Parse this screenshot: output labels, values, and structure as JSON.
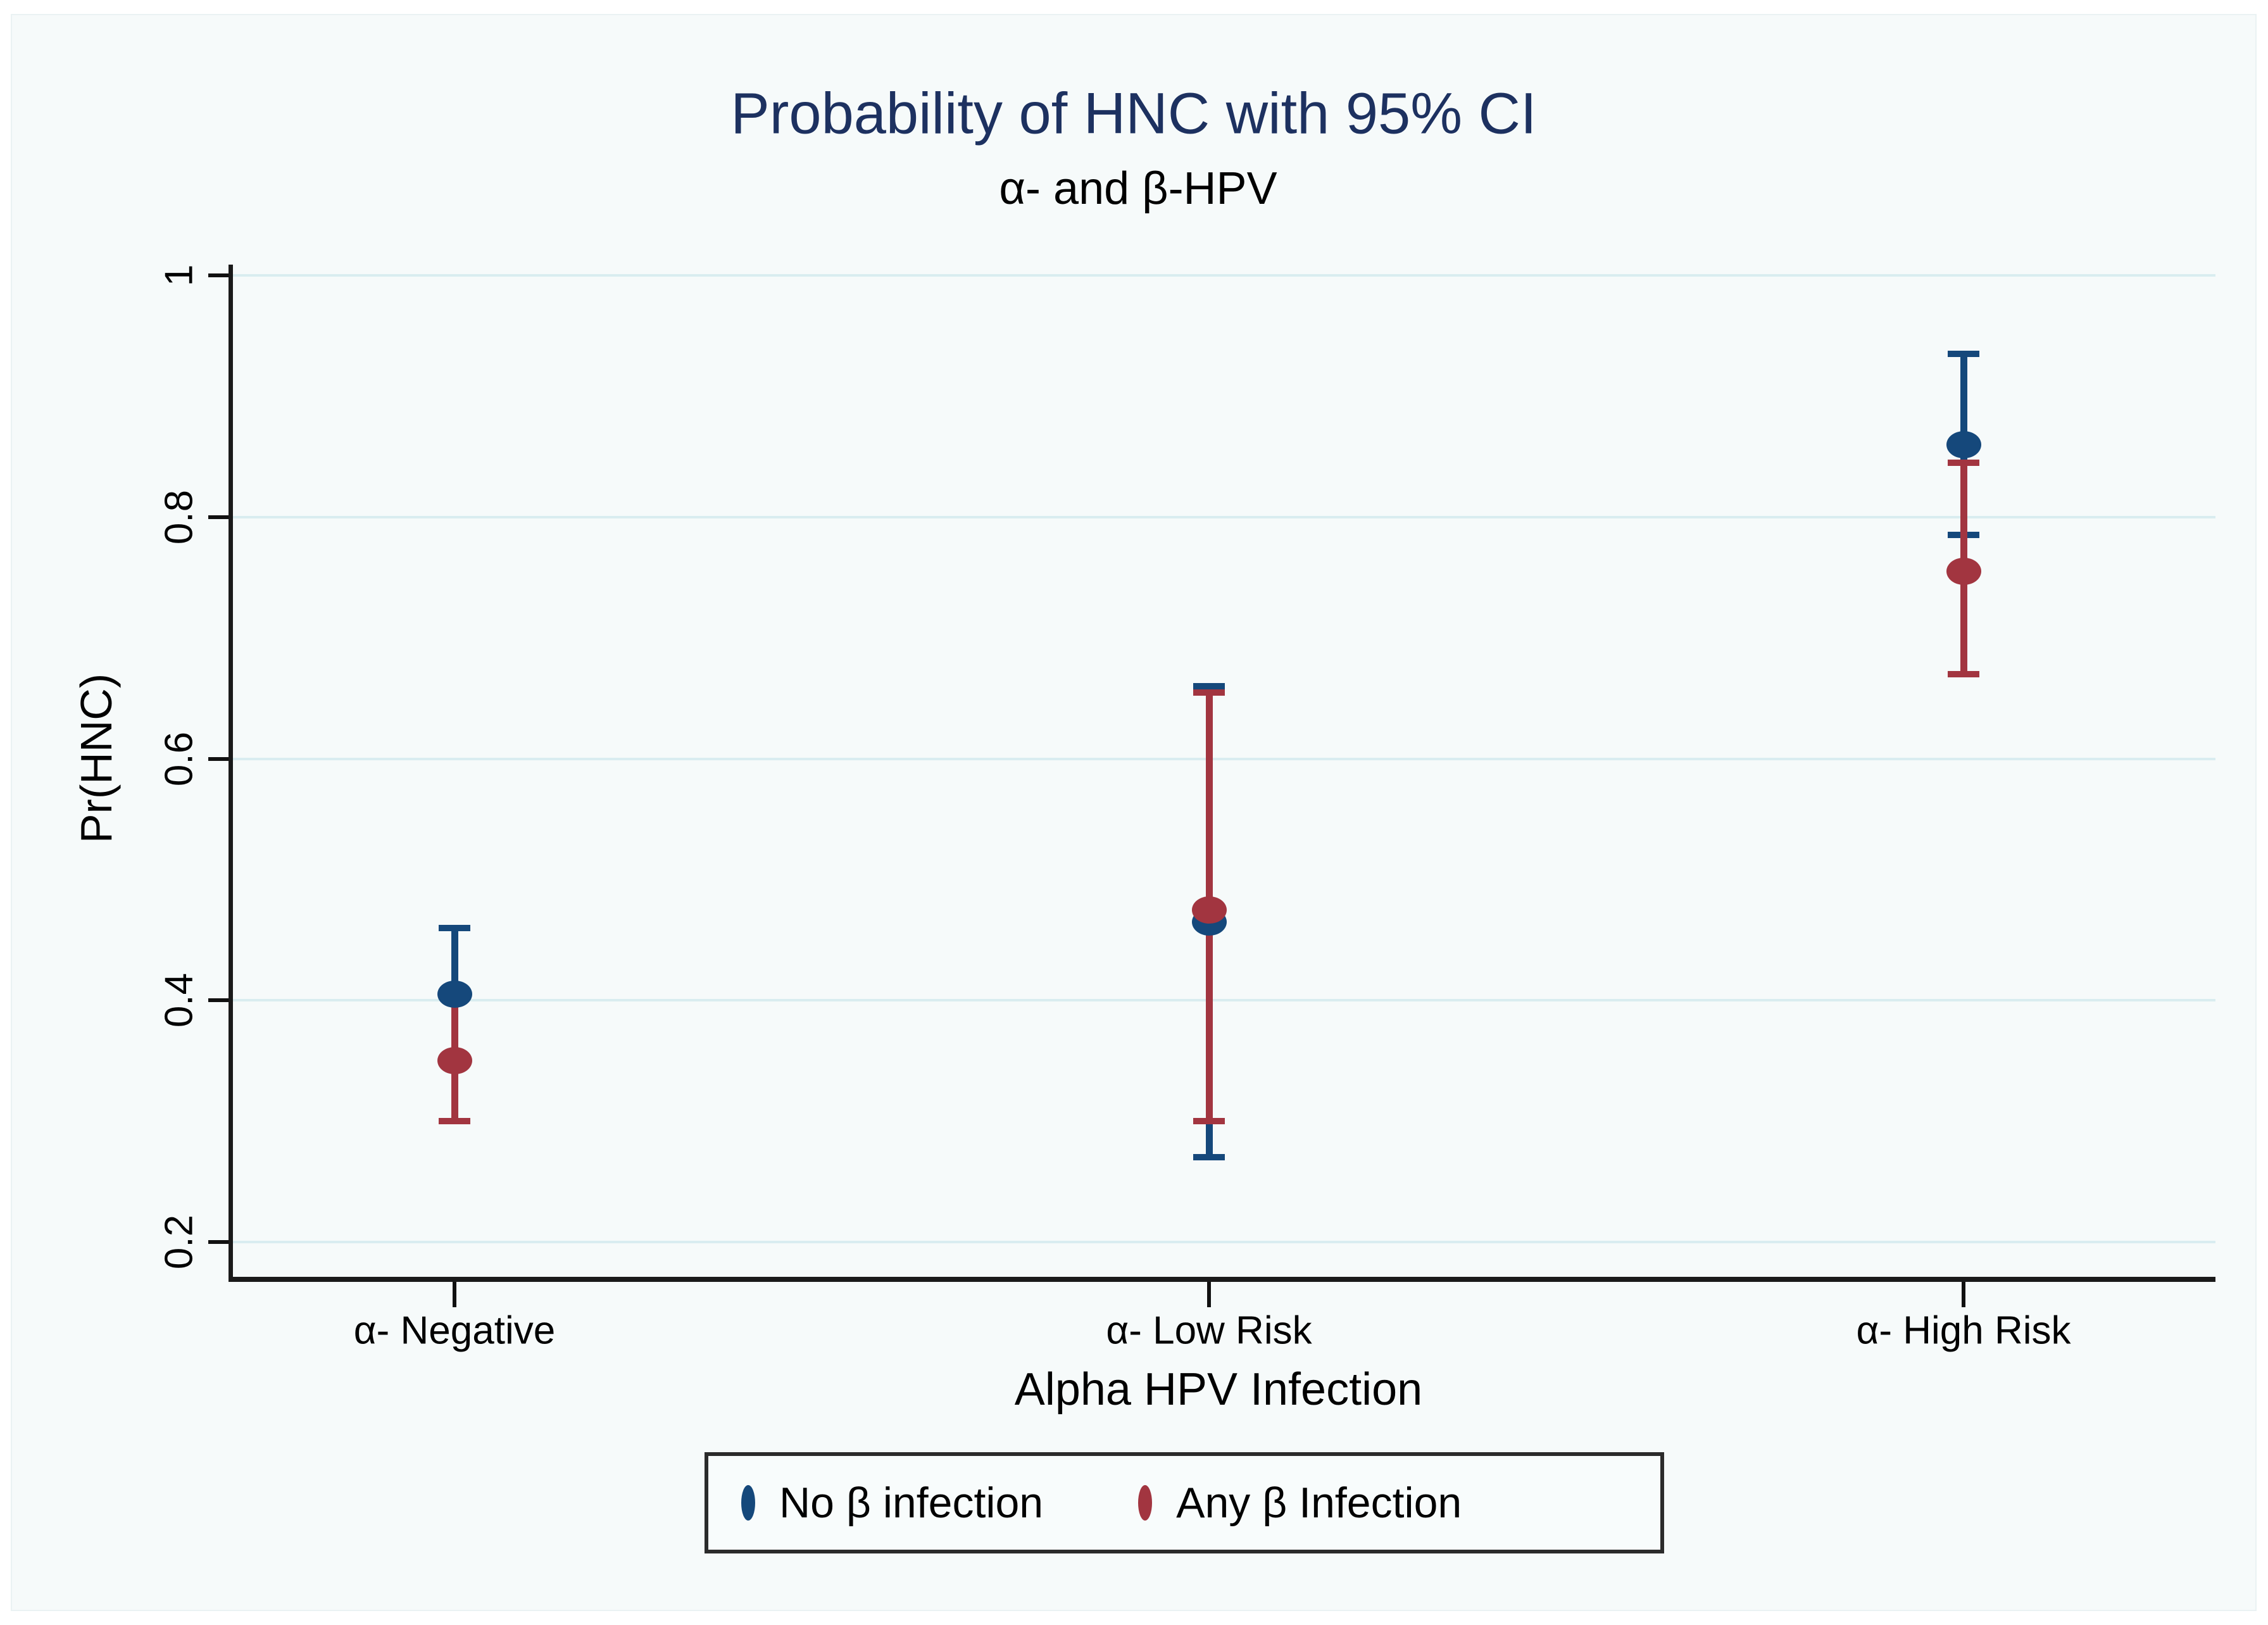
{
  "colors": {
    "title_text": "#1d3160",
    "series_navy": "#15487b",
    "series_red": "#a23540",
    "gridline": "#d9edf0",
    "axis": "#1a1a1a",
    "panel_background": "#f6fafa",
    "legend_border": "#2b2b2b"
  },
  "chart_data": {
    "type": "scatter",
    "title": "Probability of HNC with 95% CI",
    "subtitle": "α- and β-HPV",
    "xlabel": "Alpha HPV Infection",
    "ylabel": "Pr(HNC)",
    "ylim": [
      0.2,
      1
    ],
    "grid": true,
    "legend_position": "bottom",
    "yticks": [
      {
        "value": 1.0,
        "label": "1"
      },
      {
        "value": 0.8,
        "label": "0.8"
      },
      {
        "value": 0.6,
        "label": "0.6"
      },
      {
        "value": 0.4,
        "label": "0.4"
      },
      {
        "value": 0.2,
        "label": "0.2"
      }
    ],
    "categories": [
      "α- Negative",
      "α- Low Risk",
      "α- High Risk"
    ],
    "series": [
      {
        "name": "No β infection",
        "color": "#15487b",
        "points": [
          {
            "category": "α- Negative",
            "est": 0.405,
            "lo": 0.35,
            "hi": 0.46
          },
          {
            "category": "α- Low Risk",
            "est": 0.465,
            "lo": 0.27,
            "hi": 0.66
          },
          {
            "category": "α- High Risk",
            "est": 0.86,
            "lo": 0.785,
            "hi": 0.935
          }
        ]
      },
      {
        "name": "Any β Infection",
        "color": "#a23540",
        "points": [
          {
            "category": "α- Negative",
            "est": 0.35,
            "lo": 0.3,
            "hi": 0.405
          },
          {
            "category": "α- Low Risk",
            "est": 0.475,
            "lo": 0.3,
            "hi": 0.655
          },
          {
            "category": "α- High Risk",
            "est": 0.755,
            "lo": 0.67,
            "hi": 0.845
          }
        ]
      }
    ],
    "ci_note": "error bars are 95% confidence intervals"
  }
}
